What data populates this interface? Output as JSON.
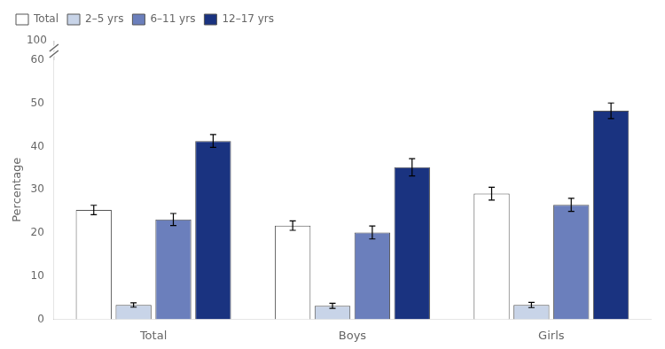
{
  "chart_data": {
    "type": "bar",
    "categories": [
      "Total",
      "Boys",
      "Girls"
    ],
    "series": [
      {
        "name": "Total",
        "color": "#ffffff",
        "values": [
          25.3,
          21.7,
          29.1
        ],
        "errors": [
          1.1,
          1.1,
          1.5
        ]
      },
      {
        "name": "2–5 yrs",
        "color": "#c8d4e8",
        "values": [
          3.3,
          3.1,
          3.3
        ],
        "errors": [
          0.5,
          0.6,
          0.6
        ]
      },
      {
        "name": "6–11 yrs",
        "color": "#6b7fbc",
        "values": [
          23.1,
          20.1,
          26.5
        ],
        "errors": [
          1.4,
          1.5,
          1.5
        ]
      },
      {
        "name": "12–17 yrs",
        "color": "#1a3380",
        "values": [
          41.3,
          35.2,
          48.3
        ],
        "errors": [
          1.5,
          2.0,
          1.8
        ]
      }
    ],
    "ylabel": "Percentage",
    "ylim": [
      0,
      60
    ],
    "yticks": [
      0,
      10,
      20,
      30,
      40,
      50,
      60
    ],
    "grid": false,
    "legend": "upper left",
    "annotations": [
      "100"
    ]
  }
}
